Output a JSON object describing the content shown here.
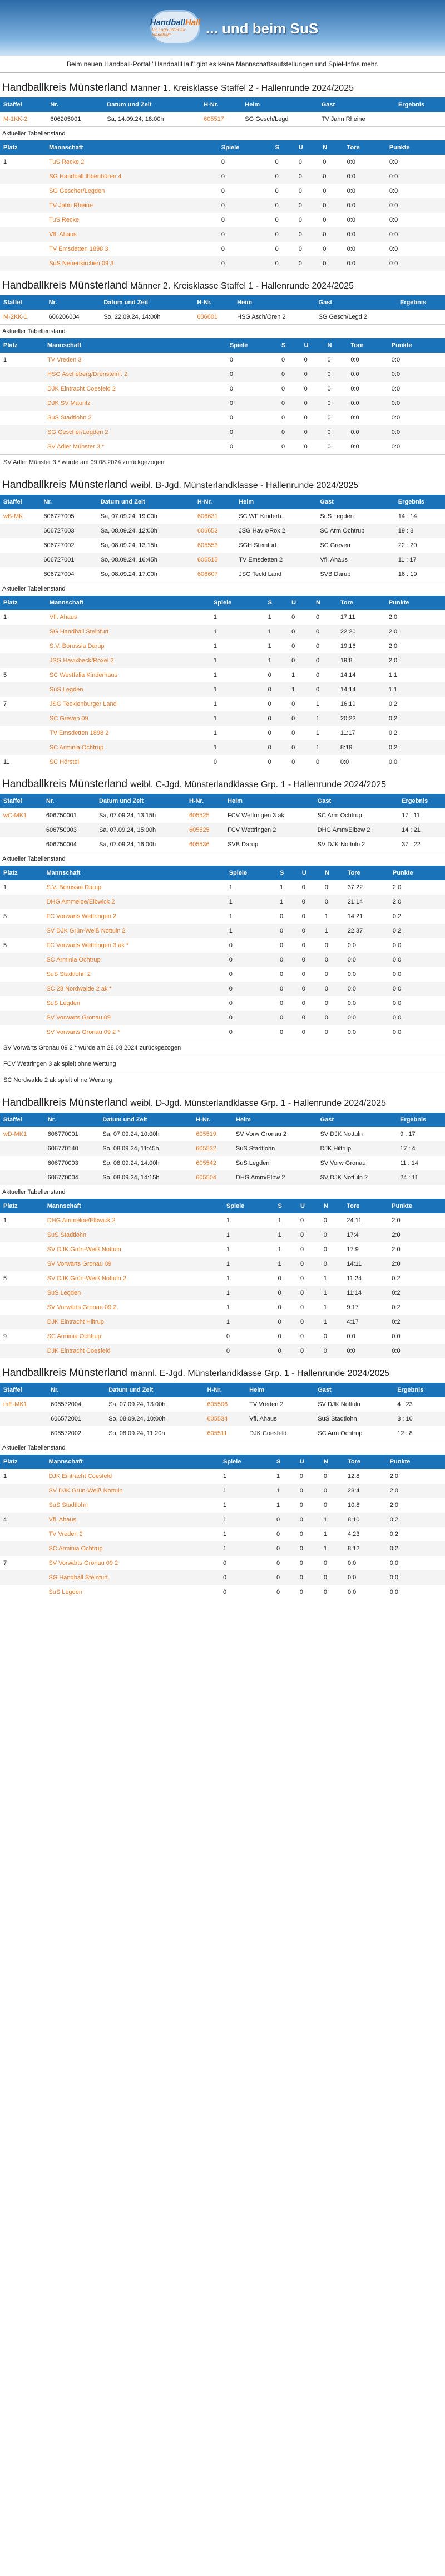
{
  "header": {
    "logo_text_a": "Handball",
    "logo_text_b": "Hall",
    "logo_sub": "Ihr Logo steht für Handball!",
    "title": "... und beim SuS",
    "intro": "Beim neuen Handball-Portal \"HandballHall\" gibt es keine Mannschaftsaufstellungen und Spiel-Infos mehr."
  },
  "games_headers": [
    "Staffel",
    "Nr.",
    "Datum und Zeit",
    "H-Nr.",
    "Heim",
    "Gast",
    "Ergebnis"
  ],
  "table_headers": [
    "Platz",
    "Mannschaft",
    "Spiele",
    "S",
    "U",
    "N",
    "Tore",
    "Punkte"
  ],
  "table_label": "Aktueller Tabellenstand",
  "leagues": [
    {
      "region": "Handballkreis Münsterland",
      "title": "Männer 1. Kreisklasse Staffel 2 - Hallenrunde 2024/2025",
      "games": [
        [
          "M-1KK-2",
          "606205001",
          "Sa, 14.09.24, 18:00h",
          "605517",
          "SG Gesch/Legd",
          "TV Jahn Rheine",
          ""
        ]
      ],
      "rows": [
        [
          "1",
          "TuS Recke 2",
          "0",
          "0",
          "0",
          "0",
          "0:0",
          "0:0"
        ],
        [
          "",
          "SG Handball Ibbenbüren 4",
          "0",
          "0",
          "0",
          "0",
          "0:0",
          "0:0"
        ],
        [
          "",
          "SG Gescher/Legden",
          "0",
          "0",
          "0",
          "0",
          "0:0",
          "0:0"
        ],
        [
          "",
          "TV Jahn Rheine",
          "0",
          "0",
          "0",
          "0",
          "0:0",
          "0:0"
        ],
        [
          "",
          "TuS Recke",
          "0",
          "0",
          "0",
          "0",
          "0:0",
          "0:0"
        ],
        [
          "",
          "Vfl. Ahaus",
          "0",
          "0",
          "0",
          "0",
          "0:0",
          "0:0"
        ],
        [
          "",
          "TV Emsdetten 1898 3",
          "0",
          "0",
          "0",
          "0",
          "0:0",
          "0:0"
        ],
        [
          "",
          "SuS Neuenkirchen 09 3",
          "0",
          "0",
          "0",
          "0",
          "0:0",
          "0:0"
        ]
      ],
      "notes": []
    },
    {
      "region": "Handballkreis Münsterland",
      "title": "Männer 2. Kreisklasse Staffel 1 - Hallenrunde 2024/2025",
      "games": [
        [
          "M-2KK-1",
          "606206004",
          "So, 22.09.24, 14:00h",
          "606601",
          "HSG Asch/Oren 2",
          "SG Gesch/Legd 2",
          ""
        ]
      ],
      "rows": [
        [
          "1",
          "TV Vreden 3",
          "0",
          "0",
          "0",
          "0",
          "0:0",
          "0:0"
        ],
        [
          "",
          "HSG Ascheberg/Drensteinf. 2",
          "0",
          "0",
          "0",
          "0",
          "0:0",
          "0:0"
        ],
        [
          "",
          "DJK Eintracht Coesfeld 2",
          "0",
          "0",
          "0",
          "0",
          "0:0",
          "0:0"
        ],
        [
          "",
          "DJK SV Mauritz",
          "0",
          "0",
          "0",
          "0",
          "0:0",
          "0:0"
        ],
        [
          "",
          "SuS Stadtlohn 2",
          "0",
          "0",
          "0",
          "0",
          "0:0",
          "0:0"
        ],
        [
          "",
          "SG Gescher/Legden 2",
          "0",
          "0",
          "0",
          "0",
          "0:0",
          "0:0"
        ],
        [
          "",
          "SV Adler Münster 3 *",
          "0",
          "0",
          "0",
          "0",
          "0:0",
          "0:0"
        ]
      ],
      "notes": [
        "SV Adler Münster 3 * wurde am 09.08.2024 zurückgezogen"
      ]
    },
    {
      "region": "Handballkreis Münsterland",
      "title": "weibl. B-Jgd. Münsterlandklasse - Hallenrunde 2024/2025",
      "games": [
        [
          "wB-MK",
          "606727005",
          "Sa, 07.09.24, 19:00h",
          "606631",
          "SC WF Kinderh.",
          "SuS Legden",
          "14 : 14"
        ],
        [
          "",
          "606727003",
          "Sa, 08.09.24, 12:00h",
          "606652",
          "JSG Havix/Rox 2",
          "SC Arm Ochtrup",
          "19 : 8"
        ],
        [
          "",
          "606727002",
          "So, 08.09.24, 13:15h",
          "605553",
          "SGH Steinfurt",
          "SC Greven",
          "22 : 20"
        ],
        [
          "",
          "606727001",
          "So, 08.09.24, 16:45h",
          "605515",
          "TV Emsdetten 2",
          "Vfl. Ahaus",
          "11 : 17"
        ],
        [
          "",
          "606727004",
          "So, 08.09.24, 17:00h",
          "606607",
          "JSG Teckl Land",
          "SVB Darup",
          "16 : 19"
        ]
      ],
      "rows": [
        [
          "1",
          "Vfl. Ahaus",
          "1",
          "1",
          "0",
          "0",
          "17:11",
          "2:0"
        ],
        [
          "",
          "SG Handball Steinfurt",
          "1",
          "1",
          "0",
          "0",
          "22:20",
          "2:0"
        ],
        [
          "",
          "S.V. Borussia Darup",
          "1",
          "1",
          "0",
          "0",
          "19:16",
          "2:0"
        ],
        [
          "",
          "JSG Havixbeck/Roxel 2",
          "1",
          "1",
          "0",
          "0",
          "19:8",
          "2:0"
        ],
        [
          "5",
          "SC Westfalia Kinderhaus",
          "1",
          "0",
          "1",
          "0",
          "14:14",
          "1:1"
        ],
        [
          "",
          "SuS Legden",
          "1",
          "0",
          "1",
          "0",
          "14:14",
          "1:1"
        ],
        [
          "7",
          "JSG Tecklenburger Land",
          "1",
          "0",
          "0",
          "1",
          "16:19",
          "0:2"
        ],
        [
          "",
          "SC Greven 09",
          "1",
          "0",
          "0",
          "1",
          "20:22",
          "0:2"
        ],
        [
          "",
          "TV Emsdetten 1898 2",
          "1",
          "0",
          "0",
          "1",
          "11:17",
          "0:2"
        ],
        [
          "",
          "SC Arminia Ochtrup",
          "1",
          "0",
          "0",
          "1",
          "8:19",
          "0:2"
        ],
        [
          "11",
          "SC Hörstel",
          "0",
          "0",
          "0",
          "0",
          "0:0",
          "0:0"
        ]
      ],
      "notes": []
    },
    {
      "region": "Handballkreis Münsterland",
      "title": "weibl. C-Jgd. Münsterlandklasse Grp. 1 - Hallenrunde 2024/2025",
      "games": [
        [
          "wC-MK1",
          "606750001",
          "Sa, 07.09.24, 13:15h",
          "605525",
          "FCV Wettringen 3 ak",
          "SC Arm Ochtrup",
          "17 : 11"
        ],
        [
          "",
          "606750003",
          "Sa, 07.09.24, 15:00h",
          "605525",
          "FCV Wettringen 2",
          "DHG Amm/Elbew 2",
          "14 : 21"
        ],
        [
          "",
          "606750004",
          "Sa, 07.09.24, 16:00h",
          "605536",
          "SVB Darup",
          "SV DJK Nottuln 2",
          "37 : 22"
        ]
      ],
      "rows": [
        [
          "1",
          "S.V. Borussia Darup",
          "1",
          "1",
          "0",
          "0",
          "37:22",
          "2:0"
        ],
        [
          "",
          "DHG Ammeloe/Elbwick 2",
          "1",
          "1",
          "0",
          "0",
          "21:14",
          "2:0"
        ],
        [
          "3",
          "FC Vorwärts Wettringen 2",
          "1",
          "0",
          "0",
          "1",
          "14:21",
          "0:2"
        ],
        [
          "",
          "SV DJK Grün-Weiß Nottuln 2",
          "1",
          "0",
          "0",
          "1",
          "22:37",
          "0:2"
        ],
        [
          "5",
          "FC Vorwärts Wettringen 3 ak *",
          "0",
          "0",
          "0",
          "0",
          "0:0",
          "0:0"
        ],
        [
          "",
          "SC Arminia Ochtrup",
          "0",
          "0",
          "0",
          "0",
          "0:0",
          "0:0"
        ],
        [
          "",
          "SuS Stadtlohn 2",
          "0",
          "0",
          "0",
          "0",
          "0:0",
          "0:0"
        ],
        [
          "",
          "SC 28 Nordwalde 2 ak *",
          "0",
          "0",
          "0",
          "0",
          "0:0",
          "0:0"
        ],
        [
          "",
          "SuS Legden",
          "0",
          "0",
          "0",
          "0",
          "0:0",
          "0:0"
        ],
        [
          "",
          "SV Vorwärts Gronau 09",
          "0",
          "0",
          "0",
          "0",
          "0:0",
          "0:0"
        ],
        [
          "",
          "SV Vorwärts Gronau 09 2 *",
          "0",
          "0",
          "0",
          "0",
          "0:0",
          "0:0"
        ]
      ],
      "notes": [
        "SV Vorwärts Gronau 09 2 * wurde am 28.08.2024 zurückgezogen",
        "FCV Wettringen 3 ak spielt ohne Wertung",
        "SC Nordwalde 2 ak spielt ohne Wertung"
      ]
    },
    {
      "region": "Handballkreis Münsterland",
      "title": "weibl. D-Jgd. Münsterlandklasse Grp. 1 - Hallenrunde 2024/2025",
      "games": [
        [
          "wD-MK1",
          "606770001",
          "Sa, 07.09.24, 10:00h",
          "605519",
          "SV Vorw Gronau 2",
          "SV DJK Nottuln",
          "9 : 17"
        ],
        [
          "",
          "606770140",
          "So, 08.09.24, 11:45h",
          "605532",
          "SuS Stadtlohn",
          "DJK Hiltrup",
          "17 : 4"
        ],
        [
          "",
          "606770003",
          "So, 08.09.24, 14:00h",
          "605542",
          "SuS Legden",
          "SV Vorw Gronau",
          "11 : 14"
        ],
        [
          "",
          "606770004",
          "So, 08.09.24, 14:15h",
          "605504",
          "DHG Amm/Elbw 2",
          "SV DJK Nottuln 2",
          "24 : 11"
        ]
      ],
      "rows": [
        [
          "1",
          "DHG Ammeloe/Elbwick 2",
          "1",
          "1",
          "0",
          "0",
          "24:11",
          "2:0"
        ],
        [
          "",
          "SuS Stadtlohn",
          "1",
          "1",
          "0",
          "0",
          "17:4",
          "2:0"
        ],
        [
          "",
          "SV DJK Grün-Weiß Nottuln",
          "1",
          "1",
          "0",
          "0",
          "17:9",
          "2:0"
        ],
        [
          "",
          "SV Vorwärts Gronau 09",
          "1",
          "1",
          "0",
          "0",
          "14:11",
          "2:0"
        ],
        [
          "5",
          "SV DJK Grün-Weiß Nottuln 2",
          "1",
          "0",
          "0",
          "1",
          "11:24",
          "0:2"
        ],
        [
          "",
          "SuS Legden",
          "1",
          "0",
          "0",
          "1",
          "11:14",
          "0:2"
        ],
        [
          "",
          "SV Vorwärts Gronau 09 2",
          "1",
          "0",
          "0",
          "1",
          "9:17",
          "0:2"
        ],
        [
          "",
          "DJK Eintracht Hiltrup",
          "1",
          "0",
          "0",
          "1",
          "4:17",
          "0:2"
        ],
        [
          "9",
          "SC Arminia Ochtrup",
          "0",
          "0",
          "0",
          "0",
          "0:0",
          "0:0"
        ],
        [
          "",
          "DJK Eintracht Coesfeld",
          "0",
          "0",
          "0",
          "0",
          "0:0",
          "0:0"
        ]
      ],
      "notes": []
    },
    {
      "region": "Handballkreis Münsterland",
      "title": "männl. E-Jgd. Münsterlandklasse Grp. 1 - Hallenrunde 2024/2025",
      "games": [
        [
          "mE-MK1",
          "606572004",
          "Sa, 07.09.24, 13:00h",
          "605506",
          "TV Vreden 2",
          "SV DJK Nottuln",
          "4 : 23"
        ],
        [
          "",
          "606572001",
          "So, 08.09.24, 10:00h",
          "605534",
          "Vfl. Ahaus",
          "SuS Stadtlohn",
          "8 : 10"
        ],
        [
          "",
          "606572002",
          "So, 08.09.24, 11:20h",
          "605511",
          "DJK Coesfeld",
          "SC Arm Ochtrup",
          "12 : 8"
        ]
      ],
      "rows": [
        [
          "1",
          "DJK Eintracht Coesfeld",
          "1",
          "1",
          "0",
          "0",
          "12:8",
          "2:0"
        ],
        [
          "",
          "SV DJK Grün-Weiß Nottuln",
          "1",
          "1",
          "0",
          "0",
          "23:4",
          "2:0"
        ],
        [
          "",
          "SuS Stadtlohn",
          "1",
          "1",
          "0",
          "0",
          "10:8",
          "2:0"
        ],
        [
          "4",
          "Vfl. Ahaus",
          "1",
          "0",
          "0",
          "1",
          "8:10",
          "0:2"
        ],
        [
          "",
          "TV Vreden 2",
          "1",
          "0",
          "0",
          "1",
          "4:23",
          "0:2"
        ],
        [
          "",
          "SC Arminia Ochtrup",
          "1",
          "0",
          "0",
          "1",
          "8:12",
          "0:2"
        ],
        [
          "7",
          "SV Vorwärts Gronau 09 2",
          "0",
          "0",
          "0",
          "0",
          "0:0",
          "0:0"
        ],
        [
          "",
          "SG Handball Steinfurt",
          "0",
          "0",
          "0",
          "0",
          "0:0",
          "0:0"
        ],
        [
          "",
          "SuS Legden",
          "0",
          "0",
          "0",
          "0",
          "0:0",
          "0:0"
        ]
      ],
      "notes": []
    }
  ],
  "colors": {
    "header_blue": "#1a73b8",
    "link_orange": "#e87722"
  }
}
